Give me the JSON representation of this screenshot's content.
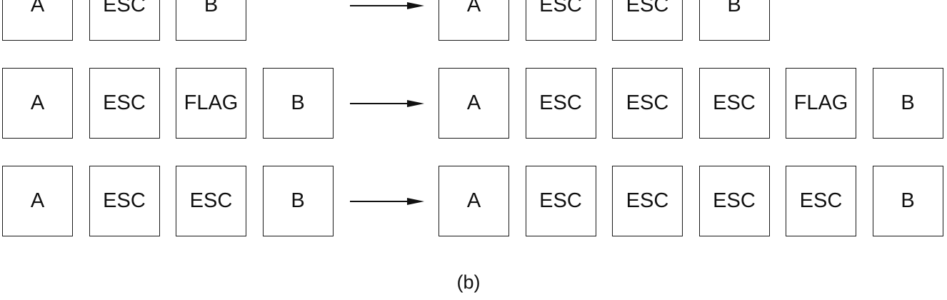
{
  "rows": [
    {
      "name": "row-1",
      "input": [
        "A",
        "ESC",
        "B"
      ],
      "output": [
        "A",
        "ESC",
        "ESC",
        "B"
      ]
    },
    {
      "name": "row-2",
      "input": [
        "A",
        "ESC",
        "FLAG",
        "B"
      ],
      "output": [
        "A",
        "ESC",
        "ESC",
        "ESC",
        "FLAG",
        "B"
      ]
    },
    {
      "name": "row-3",
      "input": [
        "A",
        "ESC",
        "ESC",
        "B"
      ],
      "output": [
        "A",
        "ESC",
        "ESC",
        "ESC",
        "ESC",
        "B"
      ]
    }
  ],
  "caption": "(b)"
}
